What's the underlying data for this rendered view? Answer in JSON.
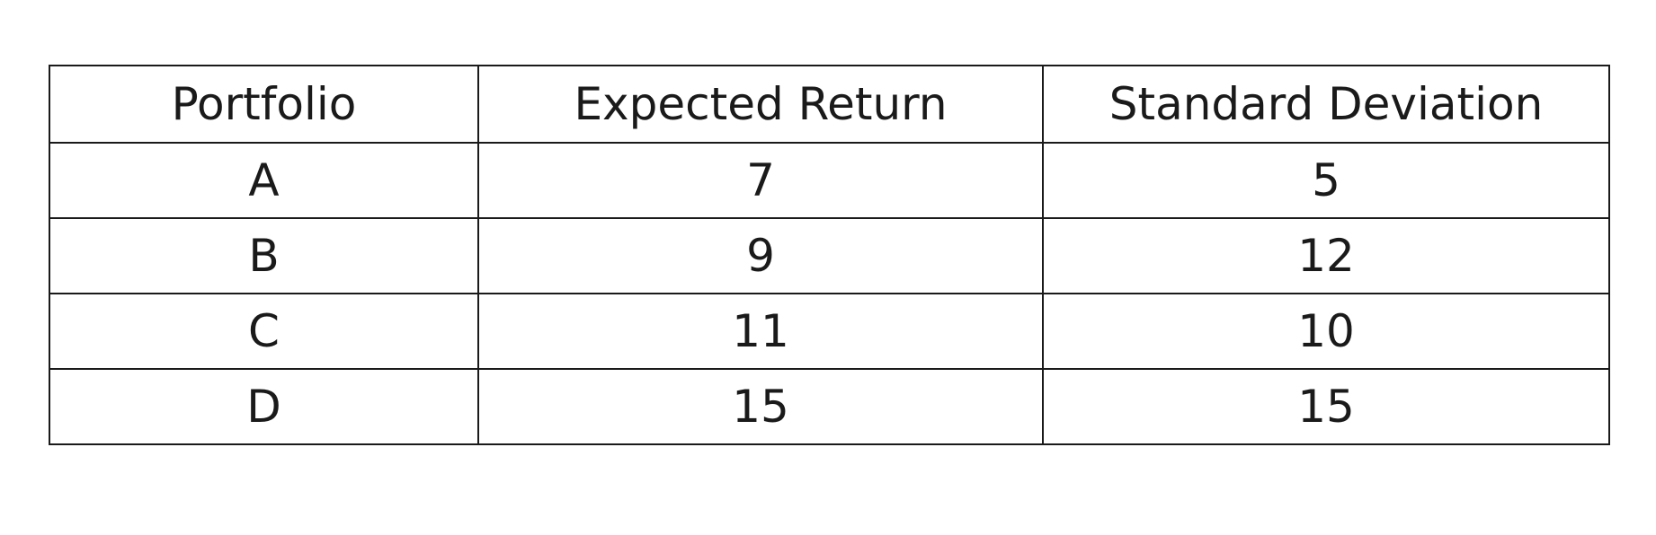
{
  "table": {
    "headers": [
      "Portfolio",
      "Expected Return",
      "Standard Deviation"
    ],
    "rows": [
      [
        "A",
        "7",
        "5"
      ],
      [
        "B",
        "9",
        "12"
      ],
      [
        "C",
        "11",
        "10"
      ],
      [
        "D",
        "15",
        "15"
      ]
    ]
  }
}
